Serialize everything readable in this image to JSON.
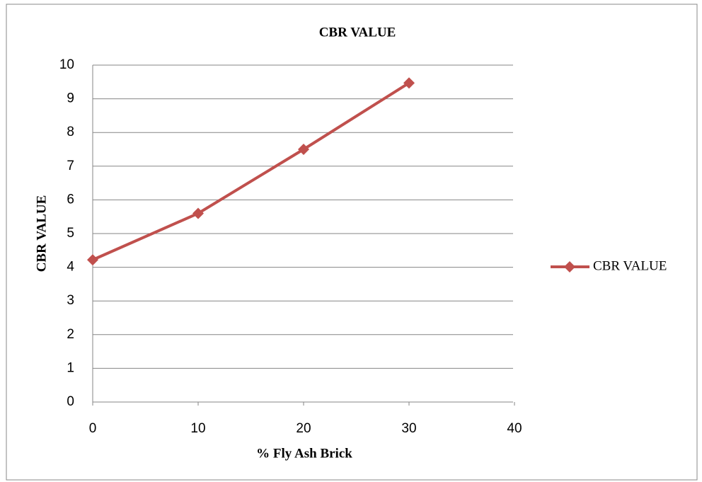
{
  "chart_data": {
    "type": "line",
    "title": "CBR VALUE",
    "xlabel": "% Fly Ash Brick",
    "ylabel": "CBR VALUE",
    "x": [
      0,
      10,
      20,
      30
    ],
    "series": [
      {
        "name": "CBR VALUE",
        "color": "#c0504d",
        "values": [
          4.22,
          5.6,
          7.5,
          9.47
        ]
      }
    ],
    "xlim": [
      0,
      40
    ],
    "xticks": [
      0,
      10,
      20,
      30,
      40
    ],
    "ylim": [
      0,
      10
    ],
    "yticks": [
      0,
      1,
      2,
      3,
      4,
      5,
      6,
      7,
      8,
      9,
      10
    ],
    "grid": true,
    "legend": "right"
  }
}
